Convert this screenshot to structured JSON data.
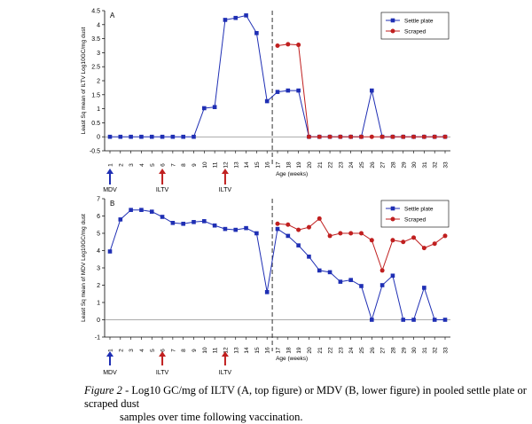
{
  "chart_data": [
    {
      "type": "line",
      "panel_label": "A",
      "ylabel": "Least Sq mean of ILTV Log10GC/mg dust",
      "xlabel": "Age (weeks)",
      "ylim": [
        -0.5,
        4.5
      ],
      "yticks": [
        "-0.5",
        "0",
        "0.5",
        "1",
        "1.5",
        "2",
        "2.5",
        "3",
        "3.5",
        "4",
        "4.5"
      ],
      "ytick_values": [
        -0.5,
        0,
        0.5,
        1,
        1.5,
        2,
        2.5,
        3,
        3.5,
        4,
        4.5
      ],
      "xlim": [
        1,
        33
      ],
      "xticks": [
        "1",
        "2",
        "3",
        "4",
        "5",
        "6",
        "7",
        "8",
        "9",
        "10",
        "11",
        "12",
        "13",
        "14",
        "15",
        "16",
        "17",
        "18",
        "19",
        "20",
        "21",
        "22",
        "23",
        "24",
        "25",
        "26",
        "27",
        "28",
        "29",
        "30",
        "31",
        "32",
        "33"
      ],
      "grid": false,
      "legend_position": "top-right",
      "divider_x": 16.5,
      "series": [
        {
          "name": "Settle plate",
          "color": "#1f2fb4",
          "marker": "square",
          "x": [
            1,
            2,
            3,
            4,
            5,
            6,
            7,
            8,
            9,
            10,
            11,
            12,
            13,
            14,
            15,
            16,
            17,
            18,
            19,
            20,
            21,
            22,
            23,
            24,
            25,
            26,
            27,
            28,
            29,
            30,
            31,
            32,
            33
          ],
          "y": [
            0,
            0,
            0,
            0,
            0,
            0,
            0,
            0,
            0,
            1.02,
            1.06,
            4.17,
            4.24,
            4.33,
            3.7,
            1.27,
            1.6,
            1.65,
            1.65,
            0,
            0,
            0,
            0,
            0,
            0,
            1.65,
            0,
            0,
            0,
            0,
            0,
            0,
            0
          ]
        },
        {
          "name": "Scraped",
          "color": "#c01f1f",
          "marker": "circle",
          "x": [
            17,
            18,
            19,
            20,
            21,
            22,
            23,
            24,
            25,
            26,
            27,
            28,
            29,
            30,
            31,
            32,
            33
          ],
          "y": [
            3.25,
            3.3,
            3.28,
            0,
            0,
            0,
            0,
            0,
            0,
            0,
            0,
            0,
            0,
            0,
            0,
            0,
            0
          ]
        }
      ],
      "arrows": [
        {
          "x": 1,
          "label": "MDV",
          "color": "#1f2fb4"
        },
        {
          "x": 6,
          "label": "ILTV",
          "color": "#c01f1f"
        },
        {
          "x": 12,
          "label": "ILTV",
          "color": "#c01f1f"
        }
      ]
    },
    {
      "type": "line",
      "panel_label": "B",
      "ylabel": "Least Sq mean of MDV Log10GC/mg dust",
      "xlabel": "Age (weeks)",
      "ylim": [
        -1,
        7
      ],
      "yticks": [
        "-1",
        "0",
        "1",
        "2",
        "3",
        "4",
        "5",
        "6",
        "7"
      ],
      "ytick_values": [
        -1,
        0,
        1,
        2,
        3,
        4,
        5,
        6,
        7
      ],
      "xlim": [
        1,
        33
      ],
      "xticks": [
        "1",
        "2",
        "3",
        "4",
        "5",
        "6",
        "7",
        "8",
        "9",
        "10",
        "11",
        "12",
        "13",
        "14",
        "15",
        "16",
        "17",
        "18",
        "19",
        "20",
        "21",
        "22",
        "23",
        "24",
        "25",
        "26",
        "27",
        "28",
        "29",
        "30",
        "31",
        "32",
        "33"
      ],
      "grid": false,
      "legend_position": "top-right",
      "divider_x": 16.5,
      "series": [
        {
          "name": "Settle plate",
          "color": "#1f2fb4",
          "marker": "square",
          "x": [
            1,
            2,
            3,
            4,
            5,
            6,
            7,
            8,
            9,
            10,
            11,
            12,
            13,
            14,
            15,
            16,
            17,
            18,
            19,
            20,
            21,
            22,
            23,
            24,
            25,
            26,
            27,
            28,
            29,
            30,
            31,
            32,
            33
          ],
          "y": [
            3.95,
            5.8,
            6.35,
            6.35,
            6.25,
            5.95,
            5.6,
            5.55,
            5.65,
            5.7,
            5.45,
            5.25,
            5.2,
            5.3,
            5.0,
            1.6,
            5.25,
            4.85,
            4.3,
            3.65,
            2.85,
            2.75,
            2.2,
            2.3,
            1.95,
            0,
            2.0,
            2.55,
            0,
            0,
            1.85,
            0,
            0
          ]
        },
        {
          "name": "Scraped",
          "color": "#c01f1f",
          "marker": "circle",
          "x": [
            17,
            18,
            19,
            20,
            21,
            22,
            23,
            24,
            25,
            26,
            27,
            28,
            29,
            30,
            31,
            32,
            33
          ],
          "y": [
            5.55,
            5.5,
            5.2,
            5.35,
            5.85,
            4.85,
            5.0,
            5.0,
            5.0,
            4.6,
            2.85,
            4.6,
            4.5,
            4.75,
            4.15,
            4.4,
            4.85
          ]
        }
      ],
      "arrows": [
        {
          "x": 1,
          "label": "MDV",
          "color": "#1f2fb4"
        },
        {
          "x": 6,
          "label": "ILTV",
          "color": "#c01f1f"
        },
        {
          "x": 12,
          "label": "ILTV",
          "color": "#c01f1f"
        }
      ]
    }
  ],
  "caption": {
    "label": "Figure 2",
    "text": " - Log10 GC/mg of ILTV (A, top figure) or MDV (B, lower figure) in pooled settle plate or scraped dust",
    "text2": "samples over time following vaccination."
  }
}
